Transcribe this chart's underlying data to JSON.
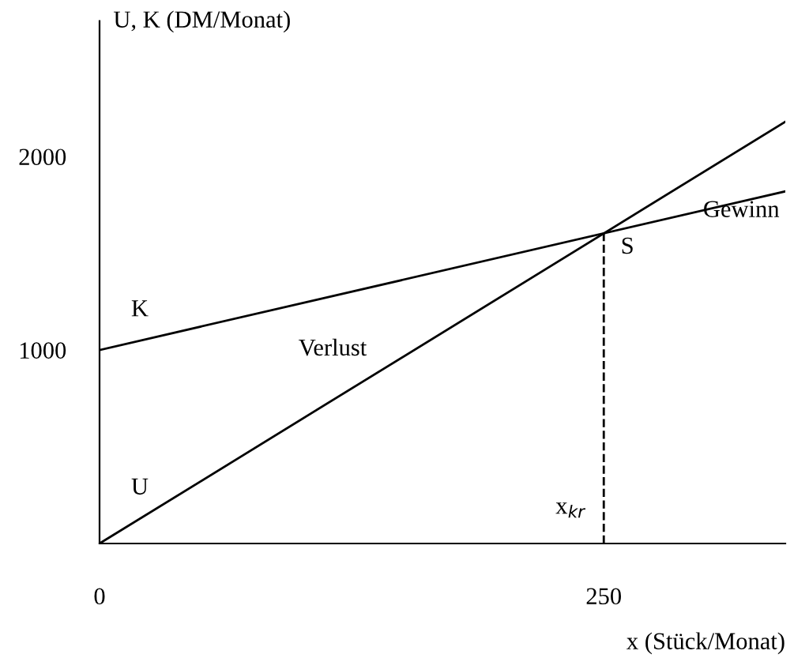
{
  "chart_data": {
    "type": "line",
    "ylabel": "U, K (DM/Monat)",
    "xlabel": "x (Stück/Monat)",
    "xlim": [
      0,
      340
    ],
    "ylim": [
      0,
      2700
    ],
    "xticks": [
      0,
      250
    ],
    "yticks": [
      1000,
      2000
    ],
    "grid": false,
    "legend": false,
    "marker": "none",
    "series": [
      {
        "color": "#000000",
        "x": [
          0,
          340
        ],
        "values": [
          1000,
          1820
        ],
        "line_style": "solid"
      },
      {
        "color": "#000000",
        "x": [
          0,
          340
        ],
        "values": [
          0,
          2180
        ],
        "line_style": "solid"
      },
      {
        "color": "#000000",
        "x": [
          250,
          250
        ],
        "values": [
          0,
          1600
        ],
        "line_style": "dashed"
      }
    ],
    "annotations": [
      "K",
      "U",
      "Verlust",
      "Gewinn",
      "S",
      "x$_{kr}$"
    ]
  }
}
